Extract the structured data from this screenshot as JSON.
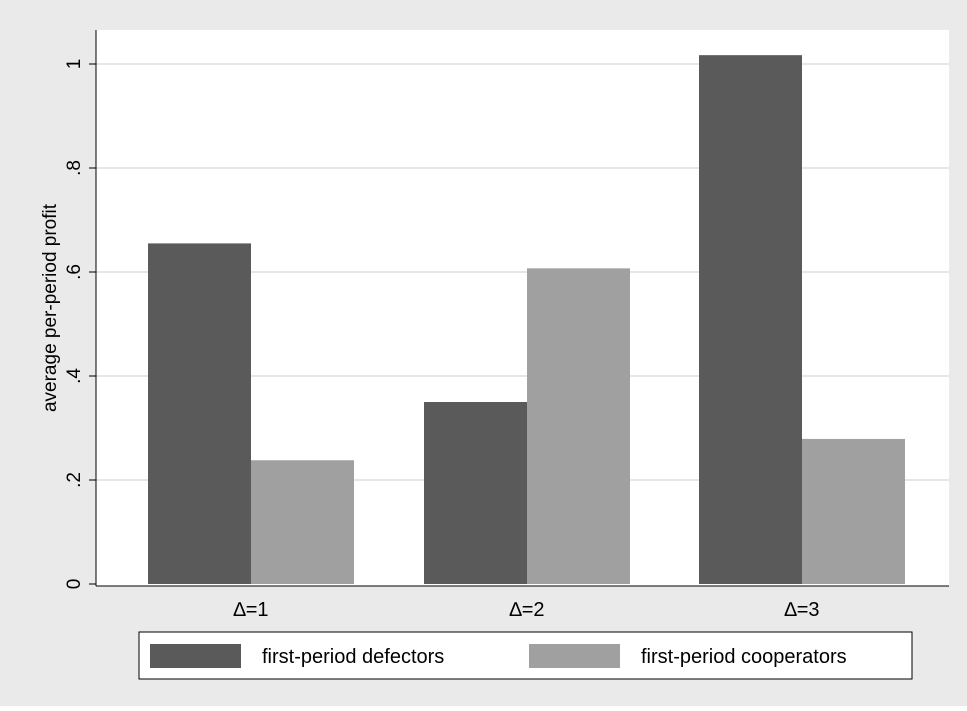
{
  "chart_data": {
    "type": "bar",
    "categories": [
      "∆=1",
      "∆=2",
      "∆=3"
    ],
    "series": [
      {
        "name": "first-period defectors",
        "values": [
          0.655,
          0.35,
          1.017
        ],
        "color": "#5a5a5a"
      },
      {
        "name": "first-period cooperators",
        "values": [
          0.238,
          0.607,
          0.279
        ],
        "color": "#a0a0a0"
      }
    ],
    "title": "",
    "xlabel": "",
    "ylabel": "average per-period profit",
    "ylim": [
      0,
      1.07
    ],
    "yticks": [
      0,
      0.2,
      0.4,
      0.6,
      0.8,
      1
    ],
    "ytick_labels": [
      "0",
      ".2",
      ".4",
      ".6",
      ".8",
      "1"
    ],
    "grid": true,
    "legend_position": "bottom",
    "colors": {
      "plot_background": "#ffffff",
      "outer_background": "#eaeaea",
      "grid": "#e6e6e6"
    }
  }
}
